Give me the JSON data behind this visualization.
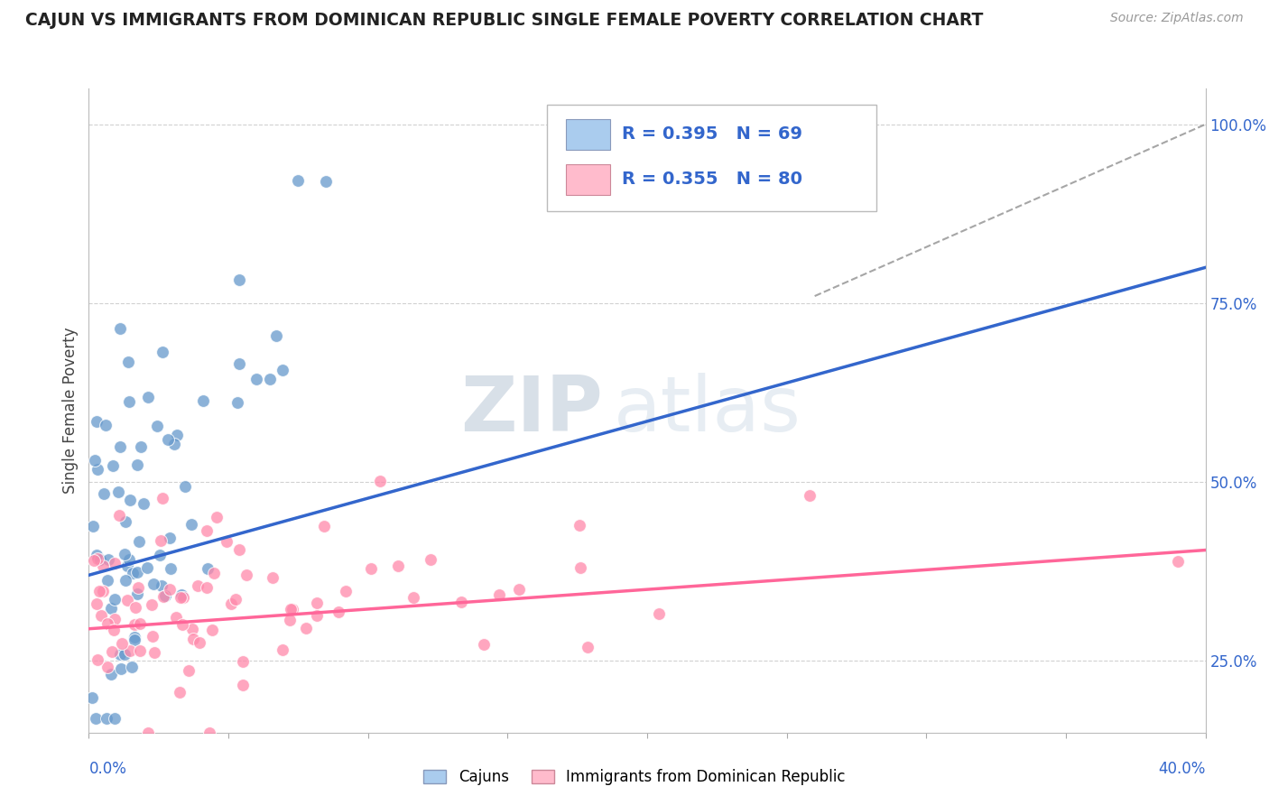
{
  "title": "CAJUN VS IMMIGRANTS FROM DOMINICAN REPUBLIC SINGLE FEMALE POVERTY CORRELATION CHART",
  "source": "Source: ZipAtlas.com",
  "ylabel": "Single Female Poverty",
  "ylabel_right_ticks": [
    "25.0%",
    "50.0%",
    "75.0%",
    "100.0%"
  ],
  "ylabel_right_values": [
    0.25,
    0.5,
    0.75,
    1.0
  ],
  "x_min": 0.0,
  "x_max": 0.4,
  "y_min": 0.15,
  "y_max": 1.05,
  "cajun_R": 0.395,
  "cajun_N": 69,
  "dr_R": 0.355,
  "dr_N": 80,
  "cajun_color": "#6699CC",
  "dr_color": "#FF88AA",
  "blue_line_color": "#3366CC",
  "pink_line_color": "#FF6699",
  "legend_box_blue": "#AACCEE",
  "legend_box_pink": "#FFBBCC",
  "cajun_trend_y0": 0.37,
  "cajun_trend_y1": 0.8,
  "dr_trend_y0": 0.295,
  "dr_trend_y1": 0.405,
  "ref_line_x0": 0.26,
  "ref_line_y0": 0.76,
  "ref_line_x1": 0.4,
  "ref_line_y1": 1.0,
  "watermark_zip": "ZIP",
  "watermark_atlas": "atlas",
  "grid_color": "#CCCCCC",
  "grid_style": "--"
}
